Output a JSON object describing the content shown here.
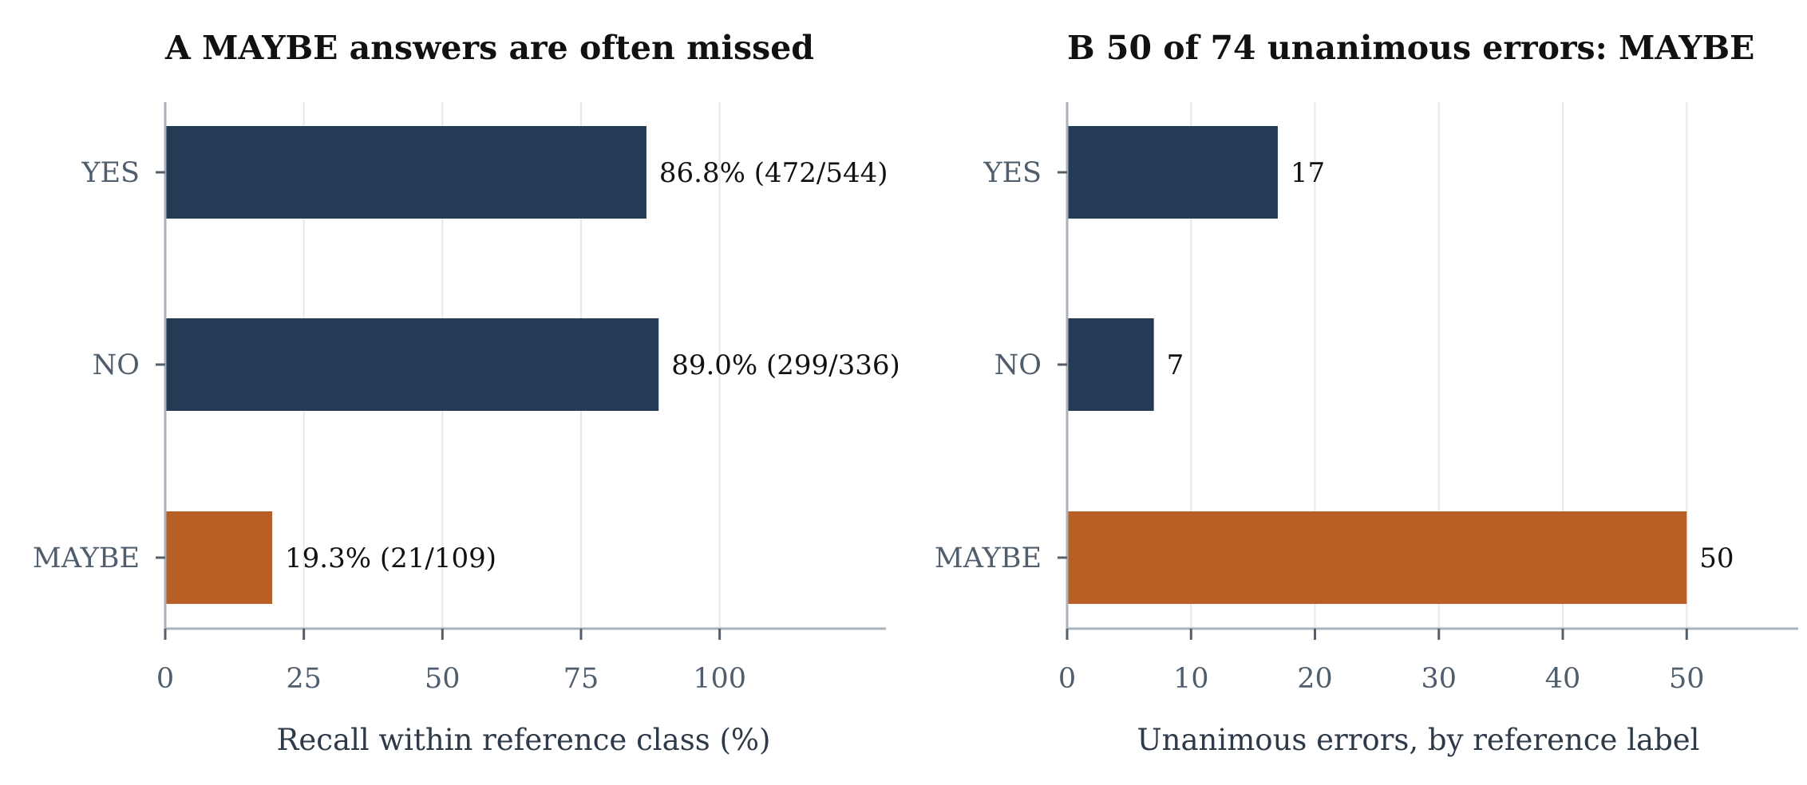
{
  "chart_data": [
    {
      "type": "bar",
      "orientation": "horizontal",
      "title": "A  MAYBE answers are often missed",
      "xlabel": "Recall within reference class (%)",
      "categories": [
        "YES",
        "NO",
        "MAYBE"
      ],
      "values": [
        86.8,
        89.0,
        19.3
      ],
      "value_labels": [
        "86.8%  (472/544)",
        "89.0%  (299/336)",
        "19.3%  (21/109)"
      ],
      "bar_colors": [
        "#233b55",
        "#233b55",
        "#b85f26"
      ],
      "xlim": [
        0,
        130
      ],
      "xticks": [
        0,
        25,
        50,
        75,
        100
      ],
      "xtick_labels": [
        "0",
        "25",
        "50",
        "75",
        "100"
      ],
      "grid": "vertical"
    },
    {
      "type": "bar",
      "orientation": "horizontal",
      "title": "B  50 of 74 unanimous errors: MAYBE",
      "xlabel": "Unanimous errors, by reference label",
      "categories": [
        "YES",
        "NO",
        "MAYBE"
      ],
      "values": [
        17,
        7,
        50
      ],
      "value_labels": [
        "17",
        "7",
        "50"
      ],
      "bar_colors": [
        "#233b55",
        "#233b55",
        "#b85f26"
      ],
      "xlim": [
        0,
        59
      ],
      "xticks": [
        0,
        10,
        20,
        30,
        40,
        50
      ],
      "xtick_labels": [
        "0",
        "10",
        "20",
        "30",
        "40",
        "50"
      ],
      "grid": "vertical"
    }
  ]
}
